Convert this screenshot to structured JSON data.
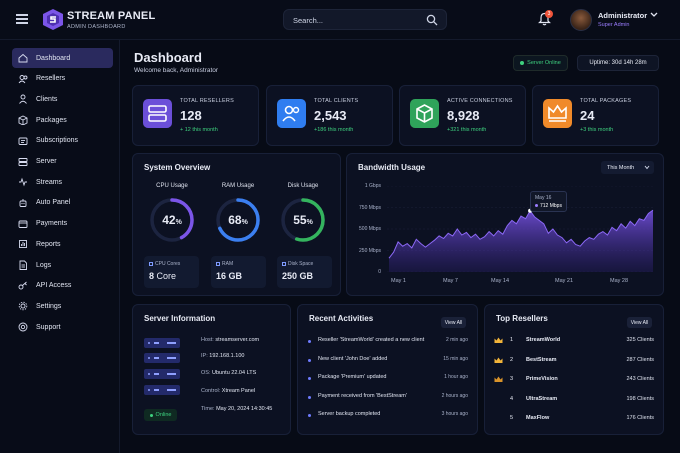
{
  "header": {
    "brand": "STREAM PANEL",
    "brand_sub": "ADMIN DASHBOARD",
    "search_placeholder": "Search...",
    "notification_count": "3",
    "user_name": "Administrator",
    "user_role": "Super Admin"
  },
  "sidebar": {
    "items": [
      {
        "label": "Dashboard",
        "icon": "home-icon"
      },
      {
        "label": "Resellers",
        "icon": "users-icon"
      },
      {
        "label": "Clients",
        "icon": "user-icon"
      },
      {
        "label": "Packages",
        "icon": "box-icon"
      },
      {
        "label": "Subscriptions",
        "icon": "card-icon"
      },
      {
        "label": "Server",
        "icon": "server-icon"
      },
      {
        "label": "Streams",
        "icon": "stream-icon"
      },
      {
        "label": "Auto Panel",
        "icon": "robot-icon"
      },
      {
        "label": "Payments",
        "icon": "wallet-icon"
      },
      {
        "label": "Reports",
        "icon": "chart-icon"
      },
      {
        "label": "Logs",
        "icon": "file-icon"
      },
      {
        "label": "API Access",
        "icon": "key-icon"
      },
      {
        "label": "Settings",
        "icon": "gear-icon"
      },
      {
        "label": "Support",
        "icon": "help-icon"
      }
    ]
  },
  "page": {
    "title": "Dashboard",
    "subtitle": "Welcome back, Administrator",
    "server_status": "Server Online",
    "uptime": "Uptime: 30d 14h 28m"
  },
  "stats": [
    {
      "title": "TOTAL RESELLERS",
      "value": "128",
      "delta": "+ 12 this month",
      "color": "#6b4fd8"
    },
    {
      "title": "TOTAL CLIENTS",
      "value": "2,543",
      "delta": "+186 this month",
      "color": "#2f7df0"
    },
    {
      "title": "ACTIVE CONNECTIONS",
      "value": "8,928",
      "delta": "+321 this month",
      "color": "#2fa35a"
    },
    {
      "title": "TOTAL PACKAGES",
      "value": "24",
      "delta": "+3 this month",
      "color": "#f08a2a"
    }
  ],
  "system": {
    "title": "System Overview",
    "gauges": [
      {
        "label": "CPU Usage",
        "value": "42",
        "unit": "%",
        "fraction": 0.42,
        "color": "#7b55e8"
      },
      {
        "label": "RAM Usage",
        "value": "68",
        "unit": "%",
        "fraction": 0.68,
        "color": "#3b7ff0"
      },
      {
        "label": "Disk Usage",
        "value": "55",
        "unit": "%",
        "fraction": 0.55,
        "color": "#34b45e"
      }
    ],
    "minis": [
      {
        "label": "CPU Cores",
        "value": "8",
        "unit": " Core"
      },
      {
        "label": "RAM",
        "value": "16 GB",
        "unit": ""
      },
      {
        "label": "Disk Space",
        "value": "250 GB",
        "unit": ""
      }
    ]
  },
  "bandwidth": {
    "title": "Bandwidth Usage",
    "period": "This Month",
    "tooltip_date": "May 16",
    "tooltip_value": "712 Mbps"
  },
  "chart_data": {
    "type": "area",
    "title": "Bandwidth Usage",
    "ylim": [
      0,
      1000
    ],
    "y_ticks": [
      "1 Gbps",
      "750 Mbps",
      "500 Mbps",
      "250 Mbps",
      "0"
    ],
    "x_ticks": [
      "May 1",
      "May 7",
      "May 14",
      "May 21",
      "May 28"
    ],
    "series": [
      {
        "name": "Bandwidth",
        "color": "#7b55e8",
        "values": [
          160,
          230,
          350,
          300,
          330,
          280,
          380,
          330,
          290,
          330,
          370,
          420,
          390,
          450,
          420,
          500,
          430,
          460,
          400,
          440,
          380,
          410,
          470,
          420,
          480,
          440,
          540,
          600,
          560,
          650,
          620,
          712,
          640,
          600,
          560,
          450,
          500,
          430,
          400,
          340,
          380,
          320,
          300,
          360,
          400,
          380,
          440,
          470,
          430,
          520,
          480,
          560,
          510,
          590,
          540,
          620,
          600,
          680,
          720
        ]
      }
    ]
  },
  "server_info": {
    "title": "Server Information",
    "host": "streamserver.com",
    "ip": "192.168.1.100",
    "os": "Ubuntu 22.04 LTS",
    "control": "Xtream Panel",
    "status": "Online",
    "time": "May 20, 2024 14:30:45",
    "labels": {
      "host": "Host:",
      "ip": "IP:",
      "os": "OS:",
      "control": "Control:",
      "time": "Time:"
    }
  },
  "activities": {
    "title": "Recent Activities",
    "view_all": "View All",
    "items": [
      {
        "text": "Reseller 'StreamWorld' created a new client",
        "time": "2 min ago"
      },
      {
        "text": "New client 'John Doe' added",
        "time": "15 min ago"
      },
      {
        "text": "Package 'Premium' updated",
        "time": "1 hour ago"
      },
      {
        "text": "Payment received from 'BestStream'",
        "time": "2 hours ago"
      },
      {
        "text": "Server backup completed",
        "time": "3 hours ago"
      }
    ]
  },
  "resellers": {
    "title": "Top Resellers",
    "view_all": "View All",
    "items": [
      {
        "rank": "1",
        "name": "StreamWorld",
        "clients": "325 Clients",
        "crown": "#f2b43a"
      },
      {
        "rank": "2",
        "name": "BestStream",
        "clients": "287 Clients",
        "crown": "#f2b43a"
      },
      {
        "rank": "3",
        "name": "PrimeVision",
        "clients": "243 Clients",
        "crown": "#d9932a"
      },
      {
        "rank": "4",
        "name": "UltraStream",
        "clients": "198 Clients",
        "crown": ""
      },
      {
        "rank": "5",
        "name": "MaxFlow",
        "clients": "176 Clients",
        "crown": ""
      }
    ]
  }
}
